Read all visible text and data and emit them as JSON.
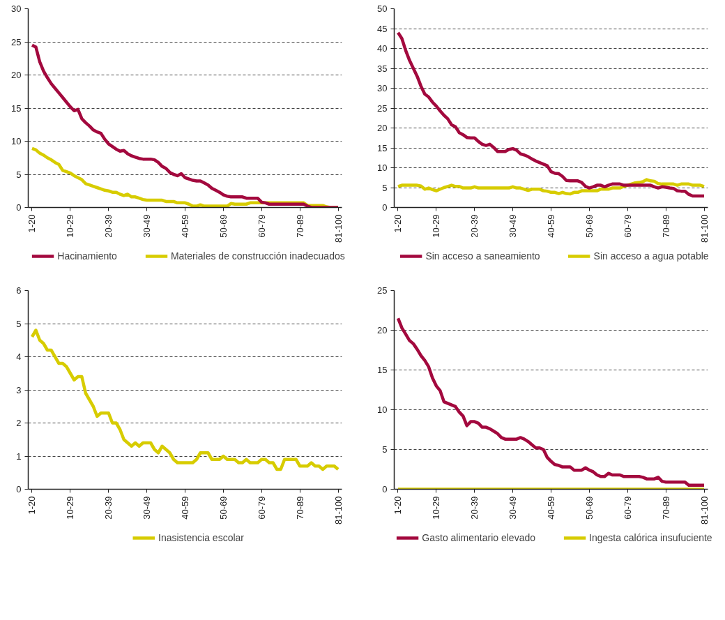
{
  "chart_data": [
    {
      "type": "line",
      "categories": [
        "1-20",
        null,
        null,
        null,
        null,
        null,
        null,
        null,
        null,
        null,
        "10-29",
        null,
        null,
        null,
        null,
        null,
        null,
        null,
        null,
        null,
        "20-39",
        null,
        null,
        null,
        null,
        null,
        null,
        null,
        null,
        null,
        "30-49",
        null,
        null,
        null,
        null,
        null,
        null,
        null,
        null,
        null,
        "40-59",
        null,
        null,
        null,
        null,
        null,
        null,
        null,
        null,
        null,
        "50-69",
        null,
        null,
        null,
        null,
        null,
        null,
        null,
        null,
        null,
        "60-79",
        null,
        null,
        null,
        null,
        null,
        null,
        null,
        null,
        null,
        "70-89",
        null,
        null,
        null,
        null,
        null,
        null,
        null,
        null,
        null,
        "81-100"
      ],
      "series": [
        {
          "name": "Hacinamiento",
          "color": "#a3093e",
          "values": [
            24.5,
            24.2,
            22,
            20.6,
            19.6,
            18.7,
            18.0,
            17.3,
            16.6,
            15.9,
            15.2,
            14.6,
            14.8,
            13.4,
            12.8,
            12.3,
            11.7,
            11.4,
            11.2,
            10.3,
            9.6,
            9.2,
            8.8,
            8.5,
            8.6,
            8.1,
            7.8,
            7.6,
            7.4,
            7.3,
            7.3,
            7.3,
            7.2,
            6.8,
            6.2,
            5.9,
            5.3,
            5.0,
            4.8,
            5.1,
            4.5,
            4.3,
            4.1,
            4.0,
            4.0,
            3.7,
            3.4,
            2.9,
            2.6,
            2.3,
            1.9,
            1.7,
            1.6,
            1.6,
            1.6,
            1.6,
            1.4,
            1.4,
            1.4,
            1.4,
            0.8,
            0.7,
            0.5,
            0.5,
            0.5,
            0.5,
            0.5,
            0.5,
            0.5,
            0.5,
            0.5,
            0.5,
            0.2,
            0,
            0,
            0,
            0,
            0,
            0,
            0,
            0
          ]
        },
        {
          "name": "Materiales de construcción inadecuados",
          "color": "#d7cc00",
          "values": [
            8.9,
            8.7,
            8.2,
            7.9,
            7.5,
            7.2,
            6.8,
            6.5,
            5.6,
            5.4,
            5.2,
            4.8,
            4.5,
            4.2,
            3.6,
            3.4,
            3.2,
            3.0,
            2.8,
            2.6,
            2.5,
            2.3,
            2.3,
            2.0,
            1.8,
            2.0,
            1.6,
            1.6,
            1.4,
            1.2,
            1.1,
            1.1,
            1.1,
            1.1,
            1.1,
            0.9,
            0.9,
            0.9,
            0.7,
            0.7,
            0.7,
            0.5,
            0.2,
            0.2,
            0.4,
            0.2,
            0.2,
            0.2,
            0.2,
            0.2,
            0.2,
            0.2,
            0.6,
            0.5,
            0.5,
            0.5,
            0.5,
            0.7,
            0.7,
            0.7,
            0.7,
            0.7,
            0.7,
            0.7,
            0.7,
            0.7,
            0.7,
            0.7,
            0.7,
            0.7,
            0.7,
            0.7,
            0.3,
            0.3,
            0.3,
            0.3,
            0.3,
            0.1,
            0,
            0,
            0
          ]
        }
      ],
      "ylim": [
        0,
        30
      ],
      "yticks": [
        0,
        5,
        10,
        15,
        20,
        25,
        30
      ],
      "grid": "y",
      "legend": "bottom",
      "line_style": "solid"
    },
    {
      "type": "line",
      "categories": [
        "1-20",
        null,
        null,
        null,
        null,
        null,
        null,
        null,
        null,
        null,
        "10-29",
        null,
        null,
        null,
        null,
        null,
        null,
        null,
        null,
        null,
        "20-39",
        null,
        null,
        null,
        null,
        null,
        null,
        null,
        null,
        null,
        "30-49",
        null,
        null,
        null,
        null,
        null,
        null,
        null,
        null,
        null,
        "40-59",
        null,
        null,
        null,
        null,
        null,
        null,
        null,
        null,
        null,
        "50-69",
        null,
        null,
        null,
        null,
        null,
        null,
        null,
        null,
        null,
        "60-79",
        null,
        null,
        null,
        null,
        null,
        null,
        null,
        null,
        null,
        "70-89",
        null,
        null,
        null,
        null,
        null,
        null,
        null,
        null,
        null,
        "81-100"
      ],
      "series": [
        {
          "name": "Sin acceso a saneamiento",
          "color": "#a3093e",
          "values": [
            44,
            42.5,
            39.5,
            37,
            35,
            33,
            30.5,
            28.5,
            27.8,
            26.5,
            25.5,
            24.3,
            23.2,
            22.3,
            20.8,
            20.3,
            18.8,
            18.3,
            17.6,
            17.5,
            17.5,
            16.6,
            15.9,
            15.6,
            15.9,
            15.1,
            14.1,
            14.1,
            14.1,
            14.6,
            14.8,
            14.4,
            13.5,
            13.2,
            12.8,
            12.2,
            11.7,
            11.3,
            10.9,
            10.5,
            9.0,
            8.6,
            8.5,
            7.8,
            6.8,
            6.7,
            6.7,
            6.7,
            6.3,
            5.3,
            4.9,
            5.2,
            5.6,
            5.6,
            5.2,
            5.6,
            5.9,
            5.9,
            5.9,
            5.6,
            5.6,
            5.6,
            5.6,
            5.6,
            5.6,
            5.6,
            5.6,
            5.2,
            4.9,
            5.2,
            5.1,
            4.9,
            4.8,
            4.2,
            4.1,
            4.1,
            3.3,
            2.9,
            2.9,
            2.9,
            2.9
          ]
        },
        {
          "name": "Sin acceso a agua potable",
          "color": "#d7cc00",
          "values": [
            5.3,
            5.6,
            5.6,
            5.6,
            5.6,
            5.6,
            5.4,
            4.6,
            4.9,
            4.5,
            4.2,
            4.6,
            5.0,
            5.3,
            5.6,
            5.3,
            5.3,
            4.9,
            4.9,
            4.9,
            5.2,
            4.9,
            4.9,
            4.9,
            4.9,
            4.9,
            4.9,
            4.9,
            4.9,
            4.9,
            5.2,
            4.9,
            4.9,
            4.6,
            4.3,
            4.6,
            4.6,
            4.6,
            4.2,
            4.1,
            3.8,
            3.8,
            3.5,
            3.8,
            3.5,
            3.4,
            3.8,
            3.8,
            4.2,
            4.2,
            4.2,
            4.2,
            4.2,
            4.6,
            4.6,
            4.6,
            4.9,
            4.9,
            4.9,
            5.3,
            5.6,
            5.9,
            6.2,
            6.3,
            6.5,
            7.0,
            6.7,
            6.6,
            6.0,
            5.9,
            5.9,
            5.9,
            5.9,
            5.6,
            5.9,
            5.9,
            5.9,
            5.6,
            5.6,
            5.6,
            5.3
          ]
        }
      ],
      "ylim": [
        0,
        50
      ],
      "yticks": [
        0,
        5,
        10,
        15,
        20,
        25,
        30,
        35,
        40,
        45,
        50
      ],
      "grid": "y",
      "legend": "bottom",
      "line_style": "solid"
    },
    {
      "type": "line",
      "categories": [
        "1-20",
        null,
        null,
        null,
        null,
        null,
        null,
        null,
        null,
        null,
        "10-29",
        null,
        null,
        null,
        null,
        null,
        null,
        null,
        null,
        null,
        "20-39",
        null,
        null,
        null,
        null,
        null,
        null,
        null,
        null,
        null,
        "30-49",
        null,
        null,
        null,
        null,
        null,
        null,
        null,
        null,
        null,
        "40-59",
        null,
        null,
        null,
        null,
        null,
        null,
        null,
        null,
        null,
        "50-69",
        null,
        null,
        null,
        null,
        null,
        null,
        null,
        null,
        null,
        "60-79",
        null,
        null,
        null,
        null,
        null,
        null,
        null,
        null,
        null,
        "70-89",
        null,
        null,
        null,
        null,
        null,
        null,
        null,
        null,
        null,
        "81-100"
      ],
      "series": [
        {
          "name": "Inasistencia escolar",
          "color": "#d7cc00",
          "values": [
            4.6,
            4.8,
            4.5,
            4.4,
            4.2,
            4.2,
            4.0,
            3.8,
            3.8,
            3.7,
            3.5,
            3.3,
            3.4,
            3.4,
            2.9,
            2.7,
            2.5,
            2.2,
            2.3,
            2.3,
            2.3,
            2.0,
            2.0,
            1.8,
            1.5,
            1.4,
            1.3,
            1.4,
            1.3,
            1.4,
            1.4,
            1.4,
            1.2,
            1.1,
            1.3,
            1.2,
            1.1,
            0.9,
            0.8,
            0.8,
            0.8,
            0.8,
            0.8,
            0.9,
            1.1,
            1.1,
            1.1,
            0.9,
            0.9,
            0.9,
            1.0,
            0.9,
            0.9,
            0.9,
            0.8,
            0.8,
            0.9,
            0.8,
            0.8,
            0.8,
            0.9,
            0.9,
            0.8,
            0.8,
            0.6,
            0.6,
            0.9,
            0.9,
            0.9,
            0.9,
            0.7,
            0.7,
            0.7,
            0.8,
            0.7,
            0.7,
            0.6,
            0.7,
            0.7,
            0.7,
            0.6
          ]
        }
      ],
      "ylim": [
        0,
        6
      ],
      "yticks": [
        0,
        1,
        2,
        3,
        4,
        5,
        6
      ],
      "grid": "y",
      "legend": "bottom",
      "line_style": "solid"
    },
    {
      "type": "line",
      "categories": [
        "1-20",
        null,
        null,
        null,
        null,
        null,
        null,
        null,
        null,
        null,
        "10-29",
        null,
        null,
        null,
        null,
        null,
        null,
        null,
        null,
        null,
        "20-39",
        null,
        null,
        null,
        null,
        null,
        null,
        null,
        null,
        null,
        "30-49",
        null,
        null,
        null,
        null,
        null,
        null,
        null,
        null,
        null,
        "40-59",
        null,
        null,
        null,
        null,
        null,
        null,
        null,
        null,
        null,
        "50-69",
        null,
        null,
        null,
        null,
        null,
        null,
        null,
        null,
        null,
        "60-79",
        null,
        null,
        null,
        null,
        null,
        null,
        null,
        null,
        null,
        "70-89",
        null,
        null,
        null,
        null,
        null,
        null,
        null,
        null,
        null,
        "81-100"
      ],
      "series": [
        {
          "name": "Gasto alimentario elevado",
          "color": "#a3093e",
          "values": [
            21.5,
            20.3,
            19.5,
            18.7,
            18.3,
            17.6,
            16.8,
            16.2,
            15.4,
            14.0,
            13.0,
            12.4,
            11.0,
            10.8,
            10.6,
            10.4,
            9.7,
            9.2,
            8.0,
            8.5,
            8.5,
            8.3,
            7.8,
            7.8,
            7.6,
            7.3,
            7.0,
            6.5,
            6.3,
            6.3,
            6.3,
            6.3,
            6.5,
            6.3,
            6.0,
            5.6,
            5.2,
            5.2,
            5.0,
            4.0,
            3.5,
            3.1,
            3.0,
            2.8,
            2.8,
            2.8,
            2.4,
            2.4,
            2.4,
            2.7,
            2.4,
            2.2,
            1.8,
            1.6,
            1.6,
            2.0,
            1.8,
            1.8,
            1.8,
            1.6,
            1.6,
            1.6,
            1.6,
            1.6,
            1.5,
            1.3,
            1.3,
            1.3,
            1.5,
            1.0,
            0.9,
            0.9,
            0.9,
            0.9,
            0.9,
            0.9,
            0.5,
            0.5,
            0.5,
            0.5,
            0.5
          ]
        },
        {
          "name": "Ingesta calórica insufuciente",
          "color": "#d7cc00",
          "values": [
            0,
            0,
            0,
            0,
            0,
            0,
            0,
            0,
            0,
            0,
            0,
            0,
            0,
            0,
            0,
            0,
            0,
            0,
            0,
            0,
            0,
            0,
            0,
            0,
            0,
            0,
            0,
            0,
            0,
            0,
            0,
            0,
            0,
            0,
            0,
            0,
            0,
            0,
            0,
            0,
            0,
            0,
            0,
            0,
            0,
            0,
            0,
            0,
            0,
            0,
            0,
            0,
            0,
            0,
            0,
            0,
            0,
            0,
            0,
            0,
            0,
            0,
            0,
            0,
            0,
            0,
            0,
            0,
            0,
            0,
            0,
            0,
            0,
            0,
            0,
            0,
            0,
            0,
            0,
            0,
            0
          ]
        }
      ],
      "ylim": [
        0,
        25
      ],
      "yticks": [
        0,
        5,
        10,
        15,
        20,
        25
      ],
      "grid": "y",
      "legend": "bottom",
      "line_style": "solid"
    }
  ]
}
